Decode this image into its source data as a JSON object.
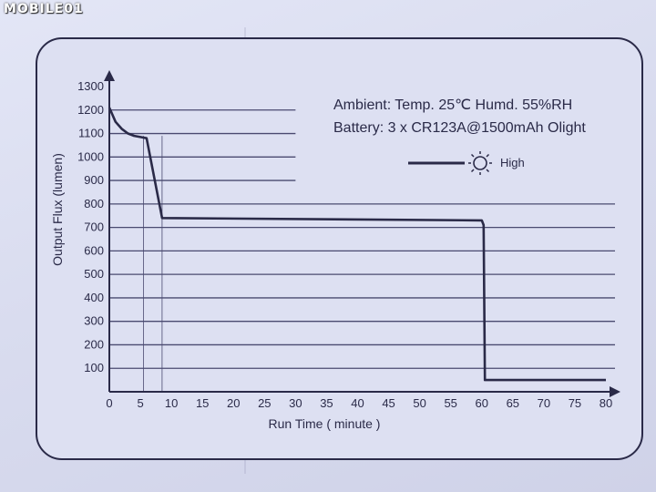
{
  "watermark": "MOBILE01",
  "annotation": {
    "line1": "Ambient:  Temp. 25℃ Humd. 55%RH",
    "line2": "Battery: 3 x CR123A@1500mAh  Olight"
  },
  "legend": {
    "label": "High",
    "icon": "sun-icon"
  },
  "colors": {
    "paper": "#dde0f2",
    "ink": "#2a2a48",
    "line": "#4a4a70"
  },
  "chart_data": {
    "type": "line",
    "title": "",
    "xlabel": "Run Time ( minute )",
    "ylabel": "Output Flux (lumen)",
    "xlim": [
      0,
      80
    ],
    "ylim": [
      0,
      1300
    ],
    "x_ticks": [
      0,
      5,
      10,
      15,
      20,
      25,
      30,
      35,
      40,
      45,
      50,
      55,
      60,
      65,
      70,
      75,
      80
    ],
    "y_ticks": [
      100,
      200,
      300,
      400,
      500,
      600,
      700,
      800,
      900,
      1000,
      1100,
      1200,
      1300
    ],
    "grid": "horizontal",
    "legend_position": "top-right",
    "series": [
      {
        "name": "High",
        "x": [
          0,
          0.5,
          1,
          2,
          3,
          4,
          5,
          6,
          8.5,
          60,
          60.3,
          60.5,
          80
        ],
        "y": [
          1210,
          1180,
          1150,
          1120,
          1100,
          1090,
          1085,
          1080,
          740,
          730,
          710,
          50,
          50
        ]
      }
    ],
    "reference_lines_x": [
      5.5,
      8.5
    ]
  }
}
